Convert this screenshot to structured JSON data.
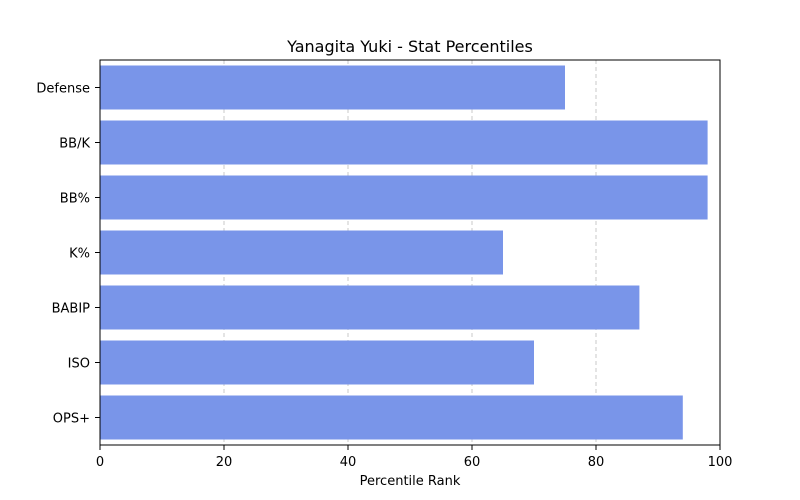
{
  "chart_data": {
    "type": "bar",
    "orientation": "horizontal",
    "title": "Yanagita Yuki - Stat Percentiles",
    "xlabel": "Percentile Rank",
    "ylabel": "",
    "xlim": [
      0,
      100
    ],
    "xticks": [
      0,
      20,
      40,
      60,
      80,
      100
    ],
    "grid": "x-dashed",
    "bar_color": "#7995e9",
    "categories": [
      "OPS+",
      "ISO",
      "BABIP",
      "K%",
      "BB%",
      "BB/K",
      "Defense"
    ],
    "values": [
      94,
      70,
      87,
      65,
      98,
      98,
      75
    ]
  }
}
